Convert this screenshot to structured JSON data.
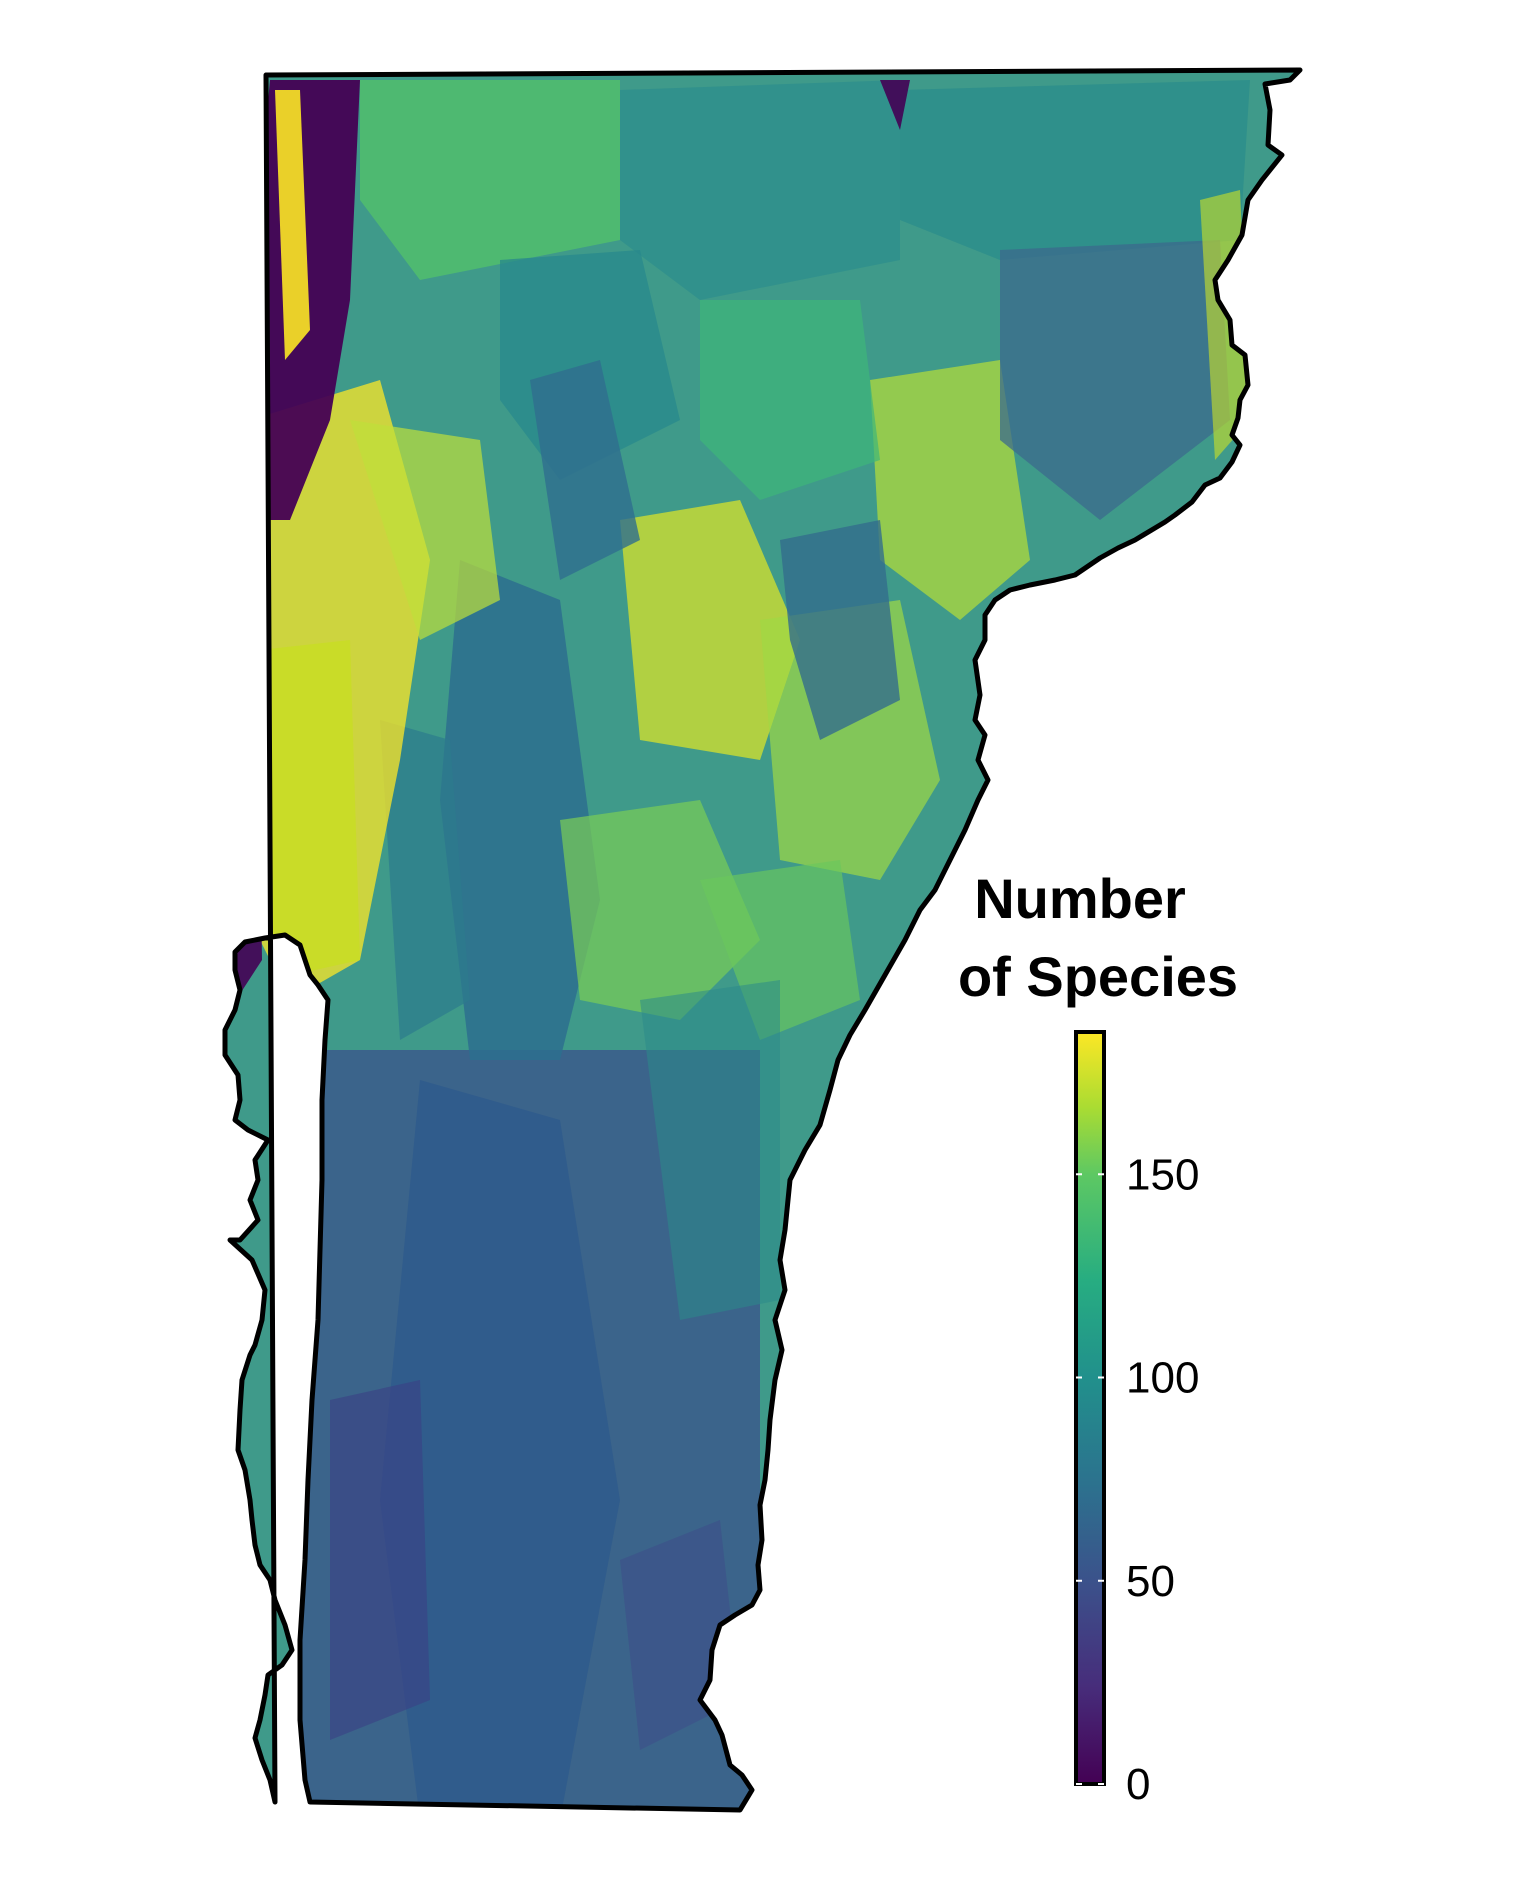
{
  "legend": {
    "title_line1": "Number",
    "title_line2": "of Species",
    "min": 0,
    "max": 185,
    "ticks": [
      {
        "value": 0,
        "label": "0"
      },
      {
        "value": 50,
        "label": "50"
      },
      {
        "value": 100,
        "label": "100"
      },
      {
        "value": 150,
        "label": "150"
      }
    ]
  },
  "colors": {
    "palette": "viridis",
    "stops": [
      "#440154",
      "#3b528b",
      "#21908c",
      "#5dc863",
      "#fde725"
    ],
    "boundary": "#000000"
  },
  "map": {
    "region": "Vermont",
    "variable": "species richness"
  }
}
